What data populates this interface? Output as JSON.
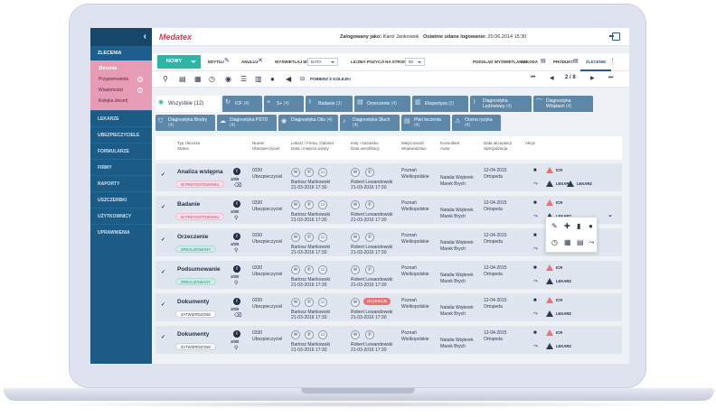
{
  "app": {
    "logo": "Medatex",
    "logged_label": "Zalogowany jako:",
    "logged_user": "Karol Jankowski",
    "lastlog_label": "Ostatnie udane logowanie:",
    "lastlog_value": "20.06.2014 15:30"
  },
  "sidebar": {
    "collapse_icon": "chevron-left-icon",
    "section_title": "ZLECENIA",
    "sub_items": [
      {
        "label": "Zlecenia",
        "active": true
      },
      {
        "label": "Przypomnienia",
        "badge": "5"
      },
      {
        "label": "Wiadomości",
        "badge": "0"
      },
      {
        "label": "Kolejka zleceń"
      }
    ],
    "items": [
      "LEKARZE",
      "UBEZPIECZYCIELE",
      "FORMULARZE",
      "FIRMY",
      "RAPORTY",
      "USZCZERBKI",
      "UŻYTKOWNICY",
      "UPRAWNIENIA"
    ]
  },
  "toolbar": {
    "new_label": "NOWY",
    "edit_label": "EDYTUJ",
    "cancel_label": "ANULUJ",
    "display_label": "WYŚWIETLAJ WG:",
    "display_value": "DATA",
    "per_page_label": "LICZBA POZYCJI NA STRONIE:",
    "per_page_value": "50",
    "views_label": "PODGLĄD WYŚWIETLANIA:",
    "views": [
      "SZKODA",
      "PRODUKT",
      "ZLECENIE"
    ],
    "fetch_label": "POBIERZ Z KOLEJKI",
    "page": "2 / 8"
  },
  "tabs_row1": [
    {
      "label": "Wszystkie",
      "count": "(12)",
      "icon": "eye-icon",
      "active": true
    },
    {
      "label": "ICF",
      "count": "(4)",
      "icon": "refresh-icon"
    },
    {
      "label": "S+",
      "count": "(4)",
      "icon": "plus-icon"
    },
    {
      "label": "Badanie",
      "count": "(3)",
      "icon": "stethoscope-icon"
    },
    {
      "label": "Orzeczenie",
      "count": "(4)",
      "icon": "document-icon"
    },
    {
      "label": "Ekspertyza",
      "count": "(2)",
      "icon": "clipboard-icon"
    },
    {
      "label": "Diagnostyka Lędźwiowy",
      "count": "(4)",
      "icon": "spine-icon"
    },
    {
      "label": "Diagnostyka Whiplash",
      "count": "(4)",
      "icon": "neck-icon"
    }
  ],
  "tabs_row2": [
    {
      "label": "Diagnostyka Biodry",
      "count": "(4)",
      "icon": "hip-icon"
    },
    {
      "label": "Diagnostyka PSTD",
      "count": "(4)",
      "icon": "brain-icon"
    },
    {
      "label": "Diagnostyka Oko",
      "count": "(4)",
      "icon": "eye-icon"
    },
    {
      "label": "Diagnostyka Słuch",
      "count": "(4)",
      "icon": "ear-icon"
    },
    {
      "label": "Plan leczenia",
      "count": "(4)",
      "icon": "plan-icon"
    },
    {
      "label": "Ocena ryzyka",
      "count": "(4)",
      "icon": "risk-icon"
    }
  ],
  "columns": {
    "type": "Typ zlecenia\nStatus",
    "number": "Numer\nUbezpieczyciel",
    "doctor": "Lekarz / Firma, Gabinet\nData i miejsce wizyty",
    "name": "Imię i nazwisko\nData weryfikacji",
    "location": "Miejscowość\nWojewództwo",
    "consultant": "Konsultant\nAutor",
    "date": "Data akceptacji\nSpecjalizacja",
    "actions": "Akcje"
  },
  "rows": [
    {
      "title": "Analiza wstępna",
      "status": "W PRZYGOTOWANIU",
      "status_kind": "prep",
      "frac": "1/0/0",
      "num": "0330",
      "insurer": "Ubezpieczyciel",
      "doctor": "Bartosz Mańkowski",
      "visit": "21-03-2016 17:30",
      "name": "Robert Lewandowski",
      "ver": "21-03-2016 17:30",
      "city": "Poznań",
      "region": "Wielkopolskie",
      "cons": "Natalia Wojterek",
      "author": "Marek Brych",
      "date": "12-04-2015",
      "spec": "Ortopeda",
      "a1": "ICR",
      "a2": "LEKARZ",
      "tag": ""
    },
    {
      "title": "Badanie",
      "status": "W PRZYGOTOWANIU",
      "status_kind": "prep",
      "frac": "1/0/0",
      "num": "0330",
      "insurer": "Ubezpieczyciel",
      "doctor": "Bartosz Mańkowski",
      "visit": "21-03-2016 17:30",
      "name": "Robert Lewandowski",
      "ver": "21-03-2016 17:30",
      "city": "Poznań",
      "region": "Wielkopolskie",
      "cons": "Natalia Wojterek",
      "author": "Marek Brych",
      "date": "12-04-2015",
      "spec": "Ortopeda",
      "a1": "ICR",
      "a2": "LEKARZ",
      "tag": ""
    },
    {
      "title": "Orzeczenie",
      "status": "ZREALIZOWANY",
      "status_kind": "done",
      "frac": "1/0/0",
      "num": "0330",
      "insurer": "Ubezpieczyciel",
      "doctor": "Bartosz Mańkowski",
      "visit": "21-03-2016 17:30",
      "name": "Robert Lewandowski",
      "ver": "21-03-2016 17:30",
      "city": "Poznań",
      "region": "Wielkopolskie",
      "cons": "Natalia Wojterek",
      "author": "Marek Brych",
      "date": "12-04-2015",
      "spec": "Ortopeda",
      "a1": "ICR",
      "a2": "LEKARZ",
      "tag": ""
    },
    {
      "title": "Podsumowanie",
      "status": "ZREALIZOWANY",
      "status_kind": "done",
      "frac": "1/0/0",
      "num": "0330",
      "insurer": "Ubezpieczyciel",
      "doctor": "Bartosz Mańkowski",
      "visit": "21-03-2016 17:30",
      "name": "Robert Lewandowski",
      "ver": "21-03-2016 17:30",
      "city": "Poznań",
      "region": "Wielkopolskie",
      "cons": "Natalia Wojterek",
      "author": "Marek Brych",
      "date": "12-04-2015",
      "spec": "Ortopeda",
      "a1": "ICR",
      "a2": "LEKARZ",
      "tag": ""
    },
    {
      "title": "Dokumenty",
      "status": "ZATWIERDZONE",
      "status_kind": "",
      "frac": "1/0/0",
      "num": "0330",
      "insurer": "Ubezpieczyciel",
      "doctor": "Bartosz Mańkowski",
      "visit": "21-03-2016 17:30",
      "name": "Robert Lewandowski",
      "ver": "21-03-2016 17:30",
      "city": "Poznań",
      "region": "Wielkopolskie",
      "cons": "Natalia Wojterek",
      "author": "Marek Brych",
      "date": "12-04-2015",
      "spec": "Ortopeda",
      "a1": "ICR",
      "a2": "LEKARZ",
      "tag": "OCZEKUJE"
    },
    {
      "title": "Dokumenty",
      "status": "ZATWIERDZONE",
      "status_kind": "",
      "frac": "1/0/0",
      "num": "0330",
      "insurer": "Ubezpieczyciel",
      "doctor": "Bartosz Mańkowski",
      "visit": "21-03-2016 17:30",
      "name": "Robert Lewandowski",
      "ver": "21-03-2016 17:30",
      "city": "Poznań",
      "region": "Wielkopolskie",
      "cons": "Natalia Wojterek",
      "author": "Marek Brych",
      "date": "12-04-2015",
      "spec": "Ortopeda",
      "a1": "ICR",
      "a2": "LEKARZ",
      "tag": ""
    }
  ],
  "colors": {
    "sidebar": "#1b5b86",
    "accent": "#2db6a5",
    "pink": "#e79cb6",
    "tab": "#5d87a9",
    "warning": "#f07070"
  }
}
